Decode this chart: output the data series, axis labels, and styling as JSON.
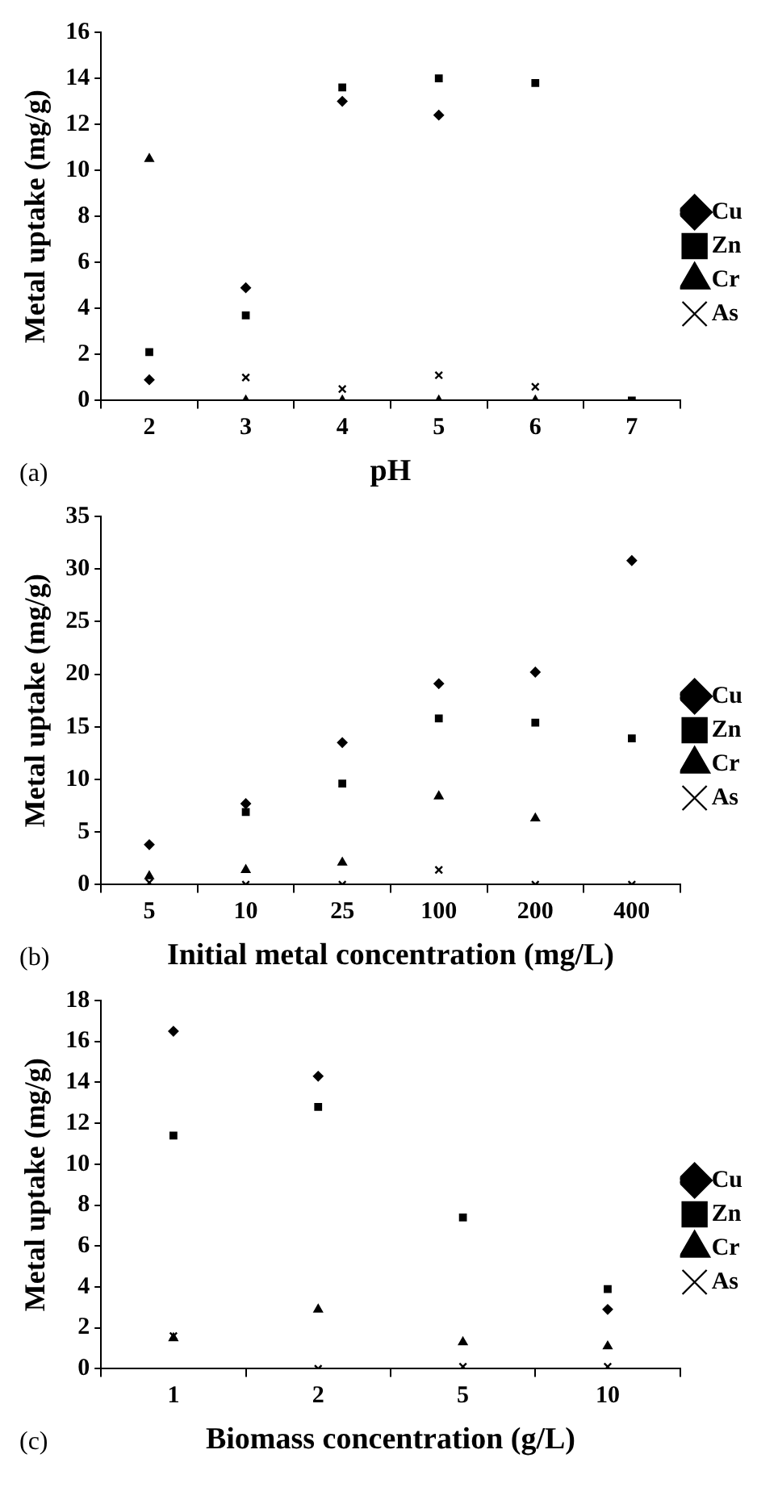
{
  "chart_data": [
    {
      "type": "scatter",
      "xlabel": "pH",
      "ylabel": "Metal uptake (mg/g)",
      "annotations": [
        "(a)"
      ],
      "categories": [
        "2",
        "3",
        "4",
        "5",
        "6",
        "7"
      ],
      "ylim": [
        0,
        16
      ],
      "yticks": [
        0,
        2,
        4,
        6,
        8,
        10,
        12,
        14,
        16
      ],
      "grid": false,
      "legend": "right",
      "series": [
        {
          "name": "Cu",
          "color": "#000000",
          "marker": "diamond",
          "values": [
            0.9,
            4.9,
            13.0,
            12.4,
            null,
            null
          ]
        },
        {
          "name": "Zn",
          "color": "#000000",
          "marker": "square",
          "values": [
            2.1,
            3.7,
            13.6,
            14.0,
            13.8,
            0
          ]
        },
        {
          "name": "Cr",
          "color": "#000000",
          "marker": "triangle",
          "values": [
            10.5,
            0,
            0,
            0,
            0,
            null
          ]
        },
        {
          "name": "As",
          "color": "#000000",
          "marker": "cross",
          "values": [
            null,
            1.0,
            0.5,
            1.1,
            0.6,
            null
          ]
        }
      ]
    },
    {
      "type": "scatter",
      "xlabel": "Initial metal concentration (mg/L)",
      "ylabel": "Metal uptake (mg/g)",
      "annotations": [
        "(b)"
      ],
      "categories": [
        "5",
        "10",
        "25",
        "100",
        "200",
        "400"
      ],
      "ylim": [
        0,
        35
      ],
      "yticks": [
        0,
        5,
        10,
        15,
        20,
        25,
        30,
        35
      ],
      "grid": false,
      "legend": "right",
      "series": [
        {
          "name": "Cu",
          "color": "#000000",
          "marker": "diamond",
          "values": [
            3.8,
            7.7,
            13.5,
            19.1,
            20.2,
            30.8
          ]
        },
        {
          "name": "Zn",
          "color": "#000000",
          "marker": "square",
          "values": [
            null,
            6.9,
            9.6,
            15.8,
            15.4,
            13.9
          ]
        },
        {
          "name": "Cr",
          "color": "#000000",
          "marker": "triangle",
          "values": [
            0.8,
            1.4,
            2.1,
            8.4,
            6.3,
            null
          ]
        },
        {
          "name": "As",
          "color": "#000000",
          "marker": "cross",
          "values": [
            0.2,
            0,
            0,
            1.4,
            0,
            0
          ]
        }
      ]
    },
    {
      "type": "scatter",
      "xlabel": "Biomass concentration (g/L)",
      "ylabel": "Metal uptake (mg/g)",
      "annotations": [
        "(c)"
      ],
      "categories": [
        "1",
        "2",
        "5",
        "10"
      ],
      "ylim": [
        0,
        18
      ],
      "yticks": [
        0,
        2,
        4,
        6,
        8,
        10,
        12,
        14,
        16,
        18
      ],
      "grid": false,
      "legend": "right",
      "series": [
        {
          "name": "Cu",
          "color": "#000000",
          "marker": "diamond",
          "values": [
            16.5,
            14.3,
            null,
            2.9
          ]
        },
        {
          "name": "Zn",
          "color": "#000000",
          "marker": "square",
          "values": [
            11.4,
            12.8,
            7.4,
            3.9
          ]
        },
        {
          "name": "Cr",
          "color": "#000000",
          "marker": "triangle",
          "values": [
            1.5,
            2.9,
            1.3,
            1.1
          ]
        },
        {
          "name": "As",
          "color": "#000000",
          "marker": "cross",
          "values": [
            1.6,
            0,
            0.1,
            0.1
          ]
        }
      ]
    }
  ]
}
